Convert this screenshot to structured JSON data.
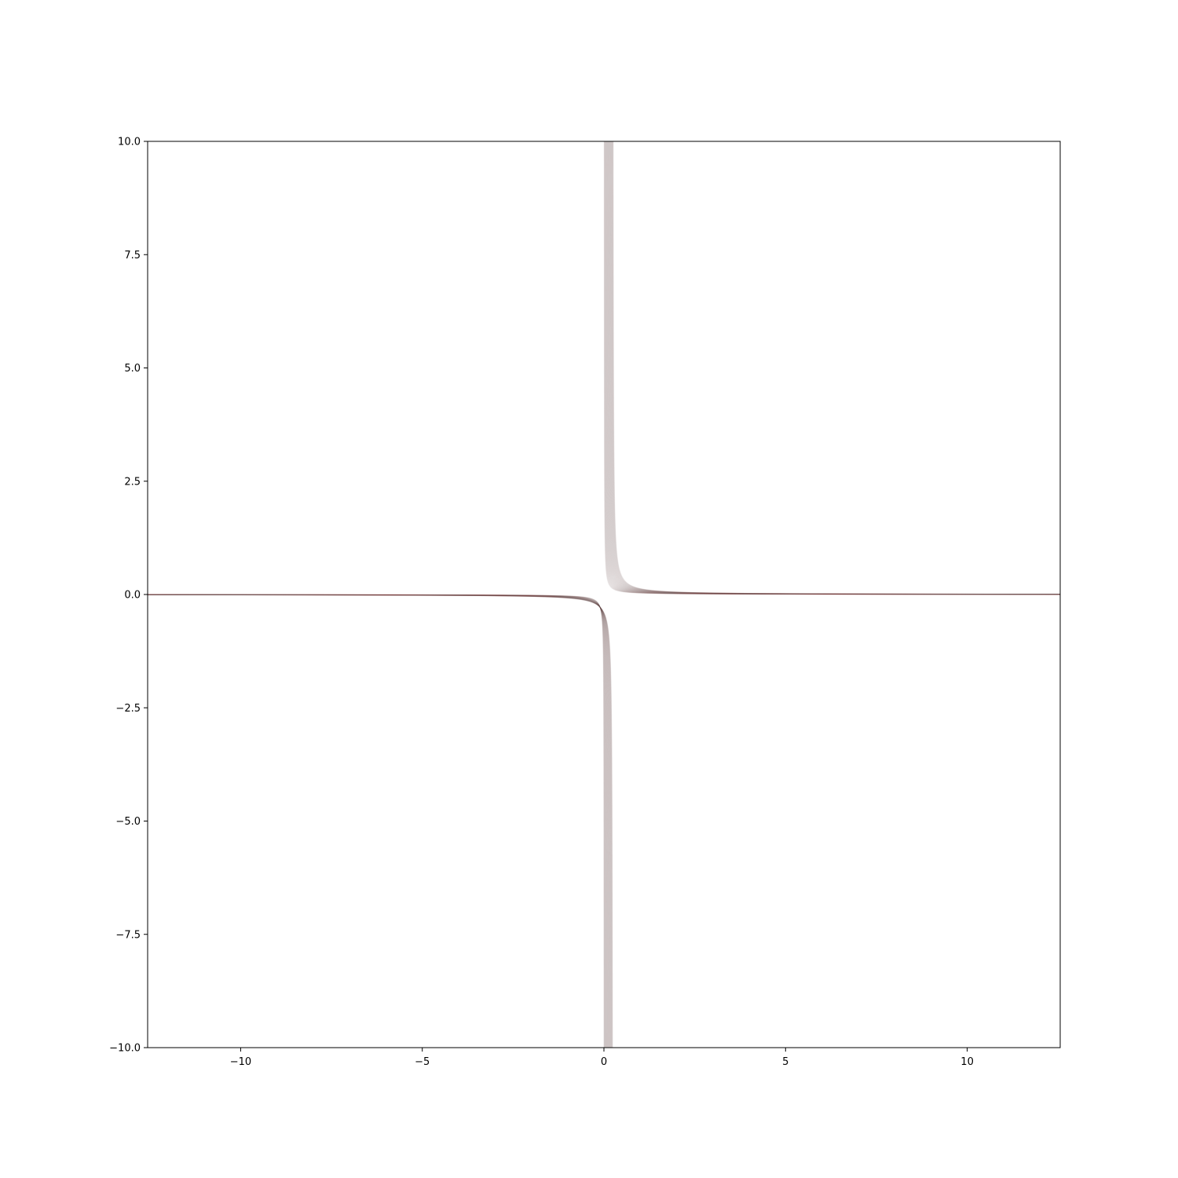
{
  "chart_data": {
    "type": "line",
    "title": "",
    "xlabel": "",
    "ylabel": "",
    "xlim": [
      -12.56,
      12.56
    ],
    "ylim": [
      -10.0,
      10.0
    ],
    "grid": false,
    "legend": "none",
    "x_ticks": [
      -10,
      -5,
      0,
      5,
      10
    ],
    "x_tick_labels": [
      "−10",
      "−5",
      "0",
      "5",
      "10"
    ],
    "y_ticks": [
      -10,
      -7.5,
      -5,
      -2.5,
      0,
      2.5,
      5,
      7.5,
      10
    ],
    "y_tick_labels": [
      "−10.0",
      "−7.5",
      "−5.0",
      "−2.5",
      "0.0",
      "2.5",
      "5.0",
      "7.5",
      "10.0"
    ],
    "series_family": {
      "description": "Family of many faint translucent hyperbola-like curves y = k / (x - c), with c swept from about 0.0 to 0.25, drawn so they accumulate into a darker band near y = 0",
      "numerator_range": [
        0.3,
        1.0
      ],
      "center_range": [
        0.0,
        0.25
      ],
      "curve_count": 120,
      "color": "#6b5b50",
      "opacity": 0.035
    }
  }
}
